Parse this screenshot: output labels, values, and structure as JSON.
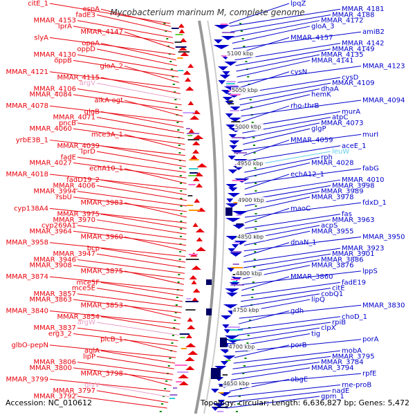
{
  "title": "Mycobacterium marinum M, complete genome",
  "footer": {
    "accession": "Accession: NC_010612",
    "summary": "Topology: circular; Length: 6,636,827 bp; Genes: 5,472"
  },
  "colors": {
    "forward": "#e8000b",
    "reverse": "#0000cc",
    "rna_fwd": "#e8a0c8",
    "rna_rev": "#66ccee",
    "backbone": "#999999",
    "tick": "#008800"
  },
  "kbp_marks": [
    "5100 kbp",
    "5050 kbp",
    "5000 kbp",
    "4950 kbp",
    "4900 kbp",
    "4850 kbp",
    "4800 kbp",
    "4750 kbp",
    "4700 kbp",
    "4650 kbp"
  ],
  "left_labels": [
    {
      "text": "citE_1",
      "kind": "gene"
    },
    {
      "text": "espA",
      "kind": "gene"
    },
    {
      "text": "fadE3",
      "kind": "gene"
    },
    {
      "text": "MMAR_4153",
      "kind": "gene"
    },
    {
      "text": "lprA",
      "kind": "gene"
    },
    {
      "text": "MMAR_4147",
      "kind": "gene"
    },
    {
      "text": "slyA",
      "kind": "gene"
    },
    {
      "text": "oppA",
      "kind": "gene"
    },
    {
      "text": "oppD",
      "kind": "gene"
    },
    {
      "text": "MMAR_4130",
      "kind": "gene"
    },
    {
      "text": "oppB",
      "kind": "gene"
    },
    {
      "text": "gloA_2",
      "kind": "gene"
    },
    {
      "text": "MMAR_4121",
      "kind": "gene"
    },
    {
      "text": "MMAR_4115",
      "kind": "gene"
    },
    {
      "text": "argV",
      "kind": "rna"
    },
    {
      "text": "MMAR_4106",
      "kind": "gene"
    },
    {
      "text": "MMAR_4084",
      "kind": "gene"
    },
    {
      "text": "alkA-ogt",
      "kind": "gene"
    },
    {
      "text": "MMAR_4078",
      "kind": "gene"
    },
    {
      "text": "glgB",
      "kind": "gene"
    },
    {
      "text": "MMAR_4071",
      "kind": "gene"
    },
    {
      "text": "pncB",
      "kind": "gene"
    },
    {
      "text": "MMAR_4060",
      "kind": "gene"
    },
    {
      "text": "mce3A_1",
      "kind": "gene"
    },
    {
      "text": "yrbE3B_1",
      "kind": "gene"
    },
    {
      "text": "MMAR_4039",
      "kind": "gene"
    },
    {
      "text": "lprD",
      "kind": "gene"
    },
    {
      "text": "fadE",
      "kind": "gene"
    },
    {
      "text": "MMAR_4027",
      "kind": "gene"
    },
    {
      "text": "echA10_1",
      "kind": "gene"
    },
    {
      "text": "MMAR_4018",
      "kind": "gene"
    },
    {
      "text": "fadD19_2",
      "kind": "gene"
    },
    {
      "text": "MMAR_4006",
      "kind": "gene"
    },
    {
      "text": "MMAR_3994",
      "kind": "gene"
    },
    {
      "text": "rsbU",
      "kind": "gene"
    },
    {
      "text": "MMAR_3983",
      "kind": "gene"
    },
    {
      "text": "cyp138A4",
      "kind": "gene"
    },
    {
      "text": "MMAR_3975",
      "kind": "gene"
    },
    {
      "text": "MMAR_3970",
      "kind": "gene"
    },
    {
      "text": "cyp269A1",
      "kind": "gene"
    },
    {
      "text": "MMAR_3964",
      "kind": "gene"
    },
    {
      "text": "MMAR_3960",
      "kind": "gene"
    },
    {
      "text": "MMAR_3958",
      "kind": "gene"
    },
    {
      "text": "bcp",
      "kind": "gene"
    },
    {
      "text": "MMAR_3947",
      "kind": "gene"
    },
    {
      "text": "MMAR_3946",
      "kind": "gene"
    },
    {
      "text": "MMAR_3908",
      "kind": "gene"
    },
    {
      "text": "MMAR_3875",
      "kind": "gene"
    },
    {
      "text": "MMAR_3874",
      "kind": "gene"
    },
    {
      "text": "mce5F",
      "kind": "gene"
    },
    {
      "text": "mce5E",
      "kind": "gene"
    },
    {
      "text": "MMAR_3857",
      "kind": "gene"
    },
    {
      "text": "MMAR_3863",
      "kind": "gene"
    },
    {
      "text": "MMAR_3853",
      "kind": "gene"
    },
    {
      "text": "MMAR_3840",
      "kind": "gene"
    },
    {
      "text": "MMAR_3854",
      "kind": "gene"
    },
    {
      "text": "argW",
      "kind": "rna"
    },
    {
      "text": "MMAR_3837",
      "kind": "gene"
    },
    {
      "text": "erg3_2",
      "kind": "gene"
    },
    {
      "text": "plcB_1",
      "kind": "gene"
    },
    {
      "text": "glbO-pepN",
      "kind": "gene"
    },
    {
      "text": "aglA",
      "kind": "gene"
    },
    {
      "text": "lipP",
      "kind": "gene"
    },
    {
      "text": "MMAR_3806",
      "kind": "gene"
    },
    {
      "text": "MMAR_3800",
      "kind": "gene"
    },
    {
      "text": "MMAR_3798",
      "kind": "gene"
    },
    {
      "text": "MMAR_3799",
      "kind": "gene"
    },
    {
      "text": "glyV",
      "kind": "rna"
    },
    {
      "text": "MMAR_3797",
      "kind": "gene"
    },
    {
      "text": "MMAR_3792",
      "kind": "gene"
    }
  ],
  "right_labels": [
    {
      "text": "lpqZ",
      "kind": "gene"
    },
    {
      "text": "MMAR_4181",
      "kind": "gene"
    },
    {
      "text": "MMAR_4188",
      "kind": "gene"
    },
    {
      "text": "MMAR_4172",
      "kind": "gene"
    },
    {
      "text": "gloA_3",
      "kind": "gene"
    },
    {
      "text": "amiB2",
      "kind": "gene"
    },
    {
      "text": "MMAR_4157",
      "kind": "gene"
    },
    {
      "text": "MMAR_4142",
      "kind": "gene"
    },
    {
      "text": "MMAR_4149",
      "kind": "gene"
    },
    {
      "text": "MMAR_4135",
      "kind": "gene"
    },
    {
      "text": "MMAR_4141",
      "kind": "gene"
    },
    {
      "text": "MMAR_4123",
      "kind": "gene"
    },
    {
      "text": "cysN",
      "kind": "gene"
    },
    {
      "text": "cysD",
      "kind": "gene"
    },
    {
      "text": "MMAR_4109",
      "kind": "gene"
    },
    {
      "text": "dhaA",
      "kind": "gene"
    },
    {
      "text": "hemK",
      "kind": "gene"
    },
    {
      "text": "MMAR_4094",
      "kind": "gene"
    },
    {
      "text": "rho-thrB",
      "kind": "gene"
    },
    {
      "text": "murA",
      "kind": "gene"
    },
    {
      "text": "atpC",
      "kind": "gene"
    },
    {
      "text": "MMAR_4073",
      "kind": "gene"
    },
    {
      "text": "glgP",
      "kind": "gene"
    },
    {
      "text": "murI",
      "kind": "gene"
    },
    {
      "text": "MMAR_4059",
      "kind": "gene"
    },
    {
      "text": "aceE_1",
      "kind": "gene"
    },
    {
      "text": "leuW",
      "kind": "rna"
    },
    {
      "text": "rph",
      "kind": "gene"
    },
    {
      "text": "MMAR_4028",
      "kind": "gene"
    },
    {
      "text": "fabG",
      "kind": "gene"
    },
    {
      "text": "echA12_1",
      "kind": "gene"
    },
    {
      "text": "MMAR_4010",
      "kind": "gene"
    },
    {
      "text": "MMAR_3998",
      "kind": "gene"
    },
    {
      "text": "MMAR_3989",
      "kind": "gene"
    },
    {
      "text": "MMAR_3978",
      "kind": "gene"
    },
    {
      "text": "fdxD_1",
      "kind": "gene"
    },
    {
      "text": "maoC",
      "kind": "gene"
    },
    {
      "text": "fas",
      "kind": "gene"
    },
    {
      "text": "MMAR_3963",
      "kind": "gene"
    },
    {
      "text": "acpS",
      "kind": "gene"
    },
    {
      "text": "MMAR_3955",
      "kind": "gene"
    },
    {
      "text": "MMAR_3950",
      "kind": "gene"
    },
    {
      "text": "dnaN_1",
      "kind": "gene"
    },
    {
      "text": "MMAR_3923",
      "kind": "gene"
    },
    {
      "text": "MMAR_3901",
      "kind": "gene"
    },
    {
      "text": "MMAR_3886",
      "kind": "gene"
    },
    {
      "text": "MMAR_3876",
      "kind": "gene"
    },
    {
      "text": "lppS",
      "kind": "gene"
    },
    {
      "text": "MMAR_3860",
      "kind": "gene"
    },
    {
      "text": "fadE19",
      "kind": "gene"
    },
    {
      "text": "citE",
      "kind": "gene"
    },
    {
      "text": "cobQ1",
      "kind": "gene"
    },
    {
      "text": "lipQ",
      "kind": "gene"
    },
    {
      "text": "MMAR_3830",
      "kind": "gene"
    },
    {
      "text": "gdh",
      "kind": "gene"
    },
    {
      "text": "choD_1",
      "kind": "gene"
    },
    {
      "text": "rpiB",
      "kind": "gene"
    },
    {
      "text": "clpX",
      "kind": "gene"
    },
    {
      "text": "tig",
      "kind": "gene"
    },
    {
      "text": "porA",
      "kind": "gene"
    },
    {
      "text": "porB",
      "kind": "gene"
    },
    {
      "text": "mobA",
      "kind": "gene"
    },
    {
      "text": "MMAR_3795",
      "kind": "gene"
    },
    {
      "text": "MMAR_3784",
      "kind": "gene"
    },
    {
      "text": "MMAR_3794",
      "kind": "gene"
    },
    {
      "text": "rpfE",
      "kind": "gene"
    },
    {
      "text": "obgE",
      "kind": "gene"
    },
    {
      "text": "rne-proB",
      "kind": "gene"
    },
    {
      "text": "nadE",
      "kind": "gene"
    },
    {
      "text": "gpm_1",
      "kind": "gene"
    }
  ]
}
